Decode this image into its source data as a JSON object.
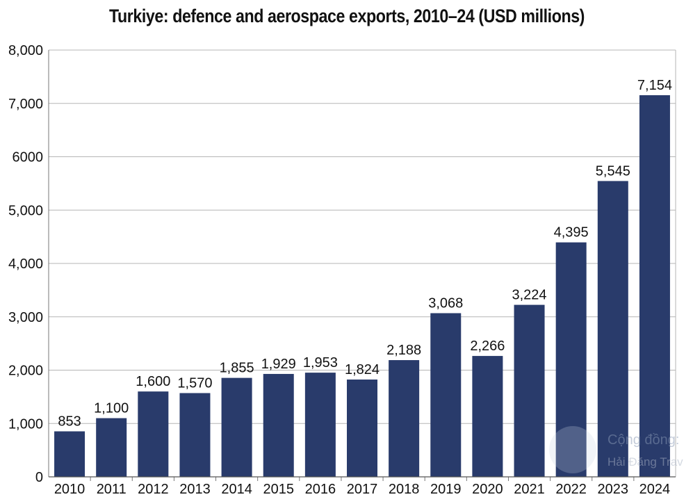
{
  "chart_data": {
    "type": "bar",
    "title": "Turkiye: defence and aerospace exports, 2010–24 (USD millions)",
    "xlabel": "",
    "ylabel": "",
    "ylim": [
      0,
      8000
    ],
    "grid": true,
    "categories": [
      "2010",
      "2011",
      "2012",
      "2013",
      "2014",
      "2015",
      "2016",
      "2017",
      "2018",
      "2019",
      "2020",
      "2021",
      "2022",
      "2023",
      "2024"
    ],
    "values": [
      853,
      1100,
      1600,
      1570,
      1855,
      1929,
      1953,
      1824,
      2188,
      3068,
      2266,
      3224,
      4395,
      5545,
      7154
    ],
    "data_labels": [
      "853",
      "1,100",
      "1,600",
      "1,570",
      "1,855",
      "1,929",
      "1,953",
      "1,824",
      "2,188",
      "3,068",
      "2,266",
      "3,224",
      "4,395",
      "5,545",
      "7,154"
    ],
    "yticks": [
      0,
      1000,
      2000,
      3000,
      4000,
      5000,
      6000,
      7000,
      8000
    ],
    "ytick_labels": [
      "0",
      "1,000",
      "2,000",
      "3,000",
      "4,000",
      "5,000",
      "6000",
      "7,000",
      "8,000"
    ],
    "bar_color": "#293b6b",
    "grid_color": "#b5b5b5"
  },
  "watermark": {
    "line1": "Cộng đồng:",
    "line2": "Hải Đăng Trav"
  }
}
